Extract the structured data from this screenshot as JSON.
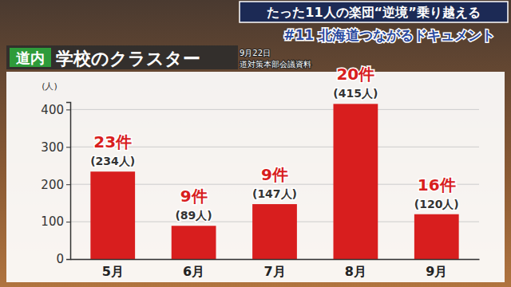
{
  "chart_data": {
    "type": "bar",
    "title": "学校のクラスター",
    "annotations": [
      "道内",
      "9月22日",
      "道対策本部会議資料",
      "たった11人の楽団“逆境”乗り越える",
      "#11 北海道つながるドキュメント"
    ],
    "ylabel": "(人)",
    "categories": [
      "5月",
      "6月",
      "7月",
      "8月",
      "9月"
    ],
    "values": [
      234,
      89,
      147,
      415,
      120
    ],
    "value_labels": [
      "(234人)",
      "(89人)",
      "(147人)",
      "(415人)",
      "(120人)"
    ],
    "case_labels": [
      "23件",
      "9件",
      "9件",
      "20件",
      "16件"
    ],
    "data_labels": true,
    "color": "#d81e1e",
    "ylim": [
      0,
      420
    ],
    "yticks": [
      0,
      100,
      200,
      300,
      400
    ],
    "grid": true
  }
}
